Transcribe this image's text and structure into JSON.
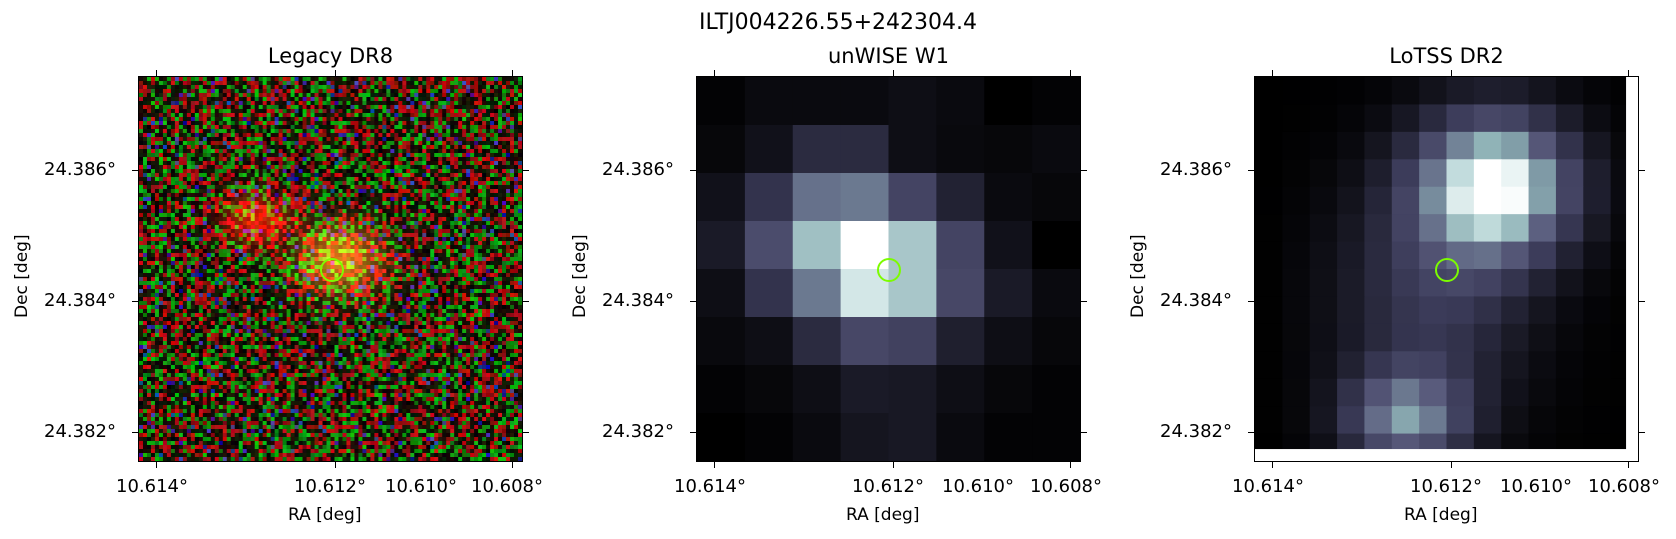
{
  "figure": {
    "suptitle": "ILTJ004226.55+242304.4"
  },
  "panels": [
    {
      "title": "Legacy DR8",
      "xlabel": "RA [deg]",
      "ylabel": "Dec [deg]",
      "xticks": [
        "10.614°",
        "10.612°",
        "10.610°",
        "10.608°"
      ],
      "yticks": [
        "24.386°",
        "24.384°",
        "24.382°"
      ],
      "image_type": "rgb-optical-noise"
    },
    {
      "title": "unWISE W1",
      "xlabel": "RA [deg]",
      "ylabel": "Dec [deg]",
      "xticks": [
        "10.614°",
        "10.612°",
        "10.610°",
        "10.608°"
      ],
      "yticks": [
        "24.386°",
        "24.384°",
        "24.382°"
      ],
      "image_type": "bone-colormap-infrared"
    },
    {
      "title": "LoTSS DR2",
      "xlabel": "RA [deg]",
      "ylabel": "Dec [deg]",
      "xticks": [
        "10.614°",
        "10.612°",
        "10.610°",
        "10.608°"
      ],
      "yticks": [
        "24.386°",
        "24.384°",
        "24.382°"
      ],
      "image_type": "bone-colormap-radio"
    }
  ],
  "marker": {
    "shape": "circle",
    "color": "#7cfc00",
    "ra": 10.611,
    "dec": 24.3845
  },
  "colors": {
    "marker": "#7cfc00",
    "axes": "#000000",
    "background": "#ffffff"
  }
}
